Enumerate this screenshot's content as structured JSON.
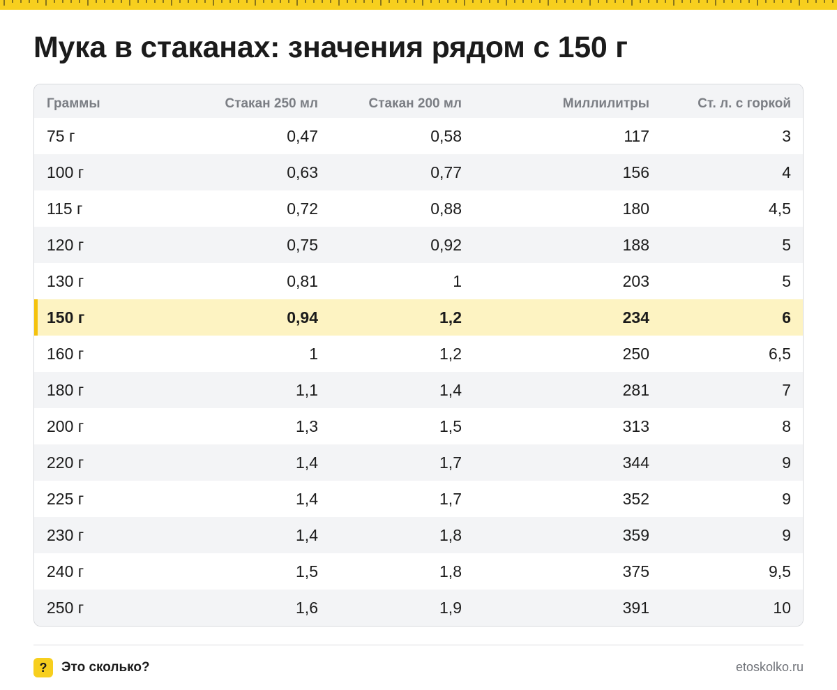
{
  "title": "Мука в стаканах: значения рядом с 150 г",
  "table": {
    "headers": [
      "Граммы",
      "Стакан 250 мл",
      "Стакан 200 мл",
      "Миллилитры",
      "Ст. л. с горкой"
    ],
    "highlight_row": "150 г",
    "rows": [
      [
        "75 г",
        "0,47",
        "0,58",
        "117",
        "3"
      ],
      [
        "100 г",
        "0,63",
        "0,77",
        "156",
        "4"
      ],
      [
        "115 г",
        "0,72",
        "0,88",
        "180",
        "4,5"
      ],
      [
        "120 г",
        "0,75",
        "0,92",
        "188",
        "5"
      ],
      [
        "130 г",
        "0,81",
        "1",
        "203",
        "5"
      ],
      [
        "150 г",
        "0,94",
        "1,2",
        "234",
        "6"
      ],
      [
        "160 г",
        "1",
        "1,2",
        "250",
        "6,5"
      ],
      [
        "180 г",
        "1,1",
        "1,4",
        "281",
        "7"
      ],
      [
        "200 г",
        "1,3",
        "1,5",
        "313",
        "8"
      ],
      [
        "220 г",
        "1,4",
        "1,7",
        "344",
        "9"
      ],
      [
        "225 г",
        "1,4",
        "1,7",
        "352",
        "9"
      ],
      [
        "230 г",
        "1,4",
        "1,8",
        "359",
        "9"
      ],
      [
        "240 г",
        "1,5",
        "1,8",
        "375",
        "9,5"
      ],
      [
        "250 г",
        "1,6",
        "1,9",
        "391",
        "10"
      ]
    ]
  },
  "footer": {
    "badge": "?",
    "brand": "Это сколько?",
    "site": "etoskolko.ru"
  },
  "colors": {
    "accent": "#f7cf1e",
    "highlight_bg": "#fdf3c2",
    "highlight_bar": "#f4c20d",
    "stripe": "#f3f4f6"
  },
  "icons": {
    "ruler": "measuring-tape-strip",
    "badge": "question-mark-badge"
  }
}
